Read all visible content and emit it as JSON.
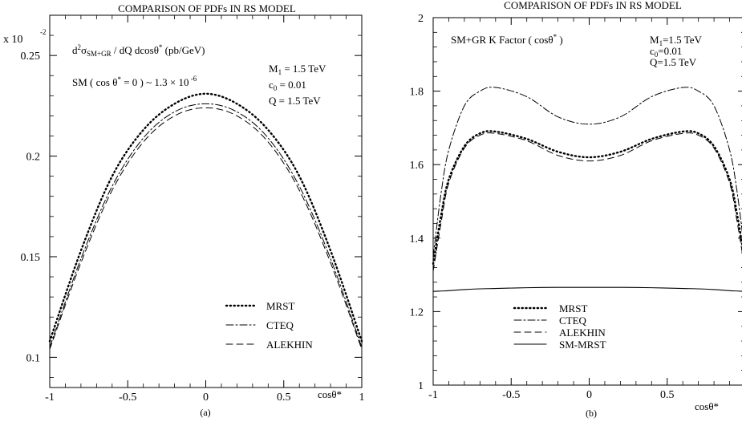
{
  "chart_data": [
    {
      "type": "line",
      "title": "COMPARISON OF PDFs IN RS MODEL",
      "panel_label": "(a)",
      "xlabel": "cosθ*",
      "y_scale_label": "x 10",
      "y_scale_exp": "-2",
      "quantity": {
        "pre": "d",
        "pre_sup": "2",
        "sigma": "σ",
        "sigma_sub": "SM+GR",
        "post": " / dQ dcosθ",
        "post_sup": "*",
        "unit": " (pb/GeV)"
      },
      "sm_note": {
        "pre": "SM ( cos θ",
        "sup1": "*",
        "mid": " = 0 ) ~ 1.3 × 10",
        "sup2": " -6"
      },
      "params": [
        "M1 = 1.5 TeV",
        "c0 = 0.01",
        "Q = 1.5 TeV"
      ],
      "params_parts": [
        {
          "base": "M",
          "sub": "1",
          "rest": " = 1.5 TeV"
        },
        {
          "base": "c",
          "sub": "0",
          "rest": " = 0.01"
        },
        {
          "base": "Q",
          "sub": "",
          "rest": " = 1.5 TeV"
        }
      ],
      "xlim": [
        -1,
        1
      ],
      "ylim": [
        0.085,
        0.27
      ],
      "xticks": [
        -1,
        -0.5,
        0,
        0.5,
        1
      ],
      "xtick_labels": [
        "-1",
        "-0.5",
        "0",
        "0.5",
        "1"
      ],
      "yticks": [
        0.1,
        0.15,
        0.2,
        0.25
      ],
      "ytick_labels": [
        "0.1",
        "0.15",
        "0.2",
        "0.25"
      ],
      "legend_position": "bottom-right",
      "x": [
        -1,
        -0.8,
        -0.6,
        -0.4,
        -0.2,
        0,
        0.2,
        0.4,
        0.6,
        0.8,
        1
      ],
      "series": [
        {
          "name": "MRST",
          "style": "dotted",
          "values": [
            0.108,
            0.153,
            0.19,
            0.213,
            0.226,
            0.231,
            0.226,
            0.213,
            0.19,
            0.153,
            0.108
          ]
        },
        {
          "name": "CTEQ",
          "style": "dashdot",
          "values": [
            0.105,
            0.149,
            0.185,
            0.209,
            0.222,
            0.226,
            0.222,
            0.209,
            0.185,
            0.149,
            0.105
          ]
        },
        {
          "name": "ALEKHIN",
          "style": "dashed",
          "values": [
            0.104,
            0.147,
            0.183,
            0.207,
            0.22,
            0.224,
            0.22,
            0.207,
            0.183,
            0.147,
            0.104
          ]
        }
      ]
    },
    {
      "type": "line",
      "title": "COMPARISON OF PDFs IN RS MODEL",
      "panel_label": "(b)",
      "xlabel": "cosθ*",
      "quantity": {
        "pre": "SM+GR K Factor ( cosθ",
        "sup": "*",
        "post": " )"
      },
      "params": [
        "M1=1.5 TeV",
        "c0=0.01",
        "Q=1.5 TeV"
      ],
      "params_parts": [
        {
          "base": "M",
          "sub": "1",
          "rest": "=1.5 TeV"
        },
        {
          "base": "c",
          "sub": "0",
          "rest": "=0.01"
        },
        {
          "base": "Q",
          "sub": "",
          "rest": "=1.5 TeV"
        }
      ],
      "xlim": [
        -1,
        1
      ],
      "ylim": [
        1,
        2
      ],
      "xticks": [
        -1,
        -0.5,
        0,
        0.5,
        1
      ],
      "xtick_labels": [
        "-1",
        "-0.5",
        "0",
        "0.5",
        "1"
      ],
      "yticks": [
        1,
        1.2,
        1.4,
        1.6,
        1.8,
        2
      ],
      "ytick_labels": [
        "1",
        "1.2",
        "1.4",
        "1.6",
        "1.8",
        "2"
      ],
      "legend_position": "bottom-left",
      "x": [
        -1,
        -0.95,
        -0.9,
        -0.8,
        -0.7,
        -0.6,
        -0.4,
        -0.2,
        0,
        0.2,
        0.4,
        0.6,
        0.7,
        0.8,
        0.9,
        0.95,
        1
      ],
      "series": [
        {
          "name": "MRST",
          "style": "dotted",
          "values": [
            1.33,
            1.46,
            1.56,
            1.65,
            1.685,
            1.69,
            1.67,
            1.635,
            1.62,
            1.635,
            1.67,
            1.69,
            1.685,
            1.65,
            1.56,
            1.46,
            1.33
          ]
        },
        {
          "name": "CTEQ",
          "style": "dashdot",
          "values": [
            1.35,
            1.52,
            1.64,
            1.76,
            1.8,
            1.81,
            1.785,
            1.73,
            1.71,
            1.73,
            1.785,
            1.81,
            1.8,
            1.76,
            1.64,
            1.52,
            1.35
          ]
        },
        {
          "name": "ALEKHIN",
          "style": "dashed",
          "values": [
            1.31,
            1.44,
            1.55,
            1.645,
            1.68,
            1.685,
            1.665,
            1.625,
            1.61,
            1.625,
            1.665,
            1.685,
            1.68,
            1.645,
            1.55,
            1.44,
            1.31
          ]
        },
        {
          "name": "SM-MRST",
          "style": "solid",
          "values": [
            1.255,
            1.256,
            1.257,
            1.26,
            1.262,
            1.263,
            1.265,
            1.266,
            1.266,
            1.266,
            1.265,
            1.263,
            1.262,
            1.26,
            1.257,
            1.256,
            1.255
          ]
        }
      ]
    }
  ]
}
